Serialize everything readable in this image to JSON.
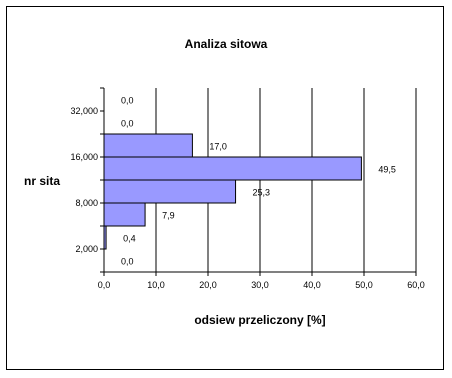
{
  "chart_data": {
    "type": "bar",
    "orientation": "horizontal",
    "title": "Analiza sitowa",
    "xlabel": "odsiew przeliczony [%]",
    "ylabel": "nr sita",
    "xlim": [
      0,
      60
    ],
    "x_ticks": [
      "0,0",
      "10,0",
      "20,0",
      "30,0",
      "40,0",
      "50,0",
      "60,0"
    ],
    "y_tick_labels": [
      "32,000",
      "16,000",
      "8,000",
      "2,000"
    ],
    "categories": [
      "32,000",
      "",
      "16,000",
      "",
      "8,000",
      "",
      "2,000",
      ""
    ],
    "values": [
      0.0,
      0.0,
      17.0,
      49.5,
      25.3,
      7.9,
      0.4,
      0.0
    ],
    "value_labels": [
      "0,0",
      "0,0",
      "17,0",
      "49,5",
      "25,3",
      "7,9",
      "0,4",
      "0,0"
    ],
    "grid": "vertical",
    "bar_color": "#9999ff",
    "bar_edge_color": "#000000"
  }
}
